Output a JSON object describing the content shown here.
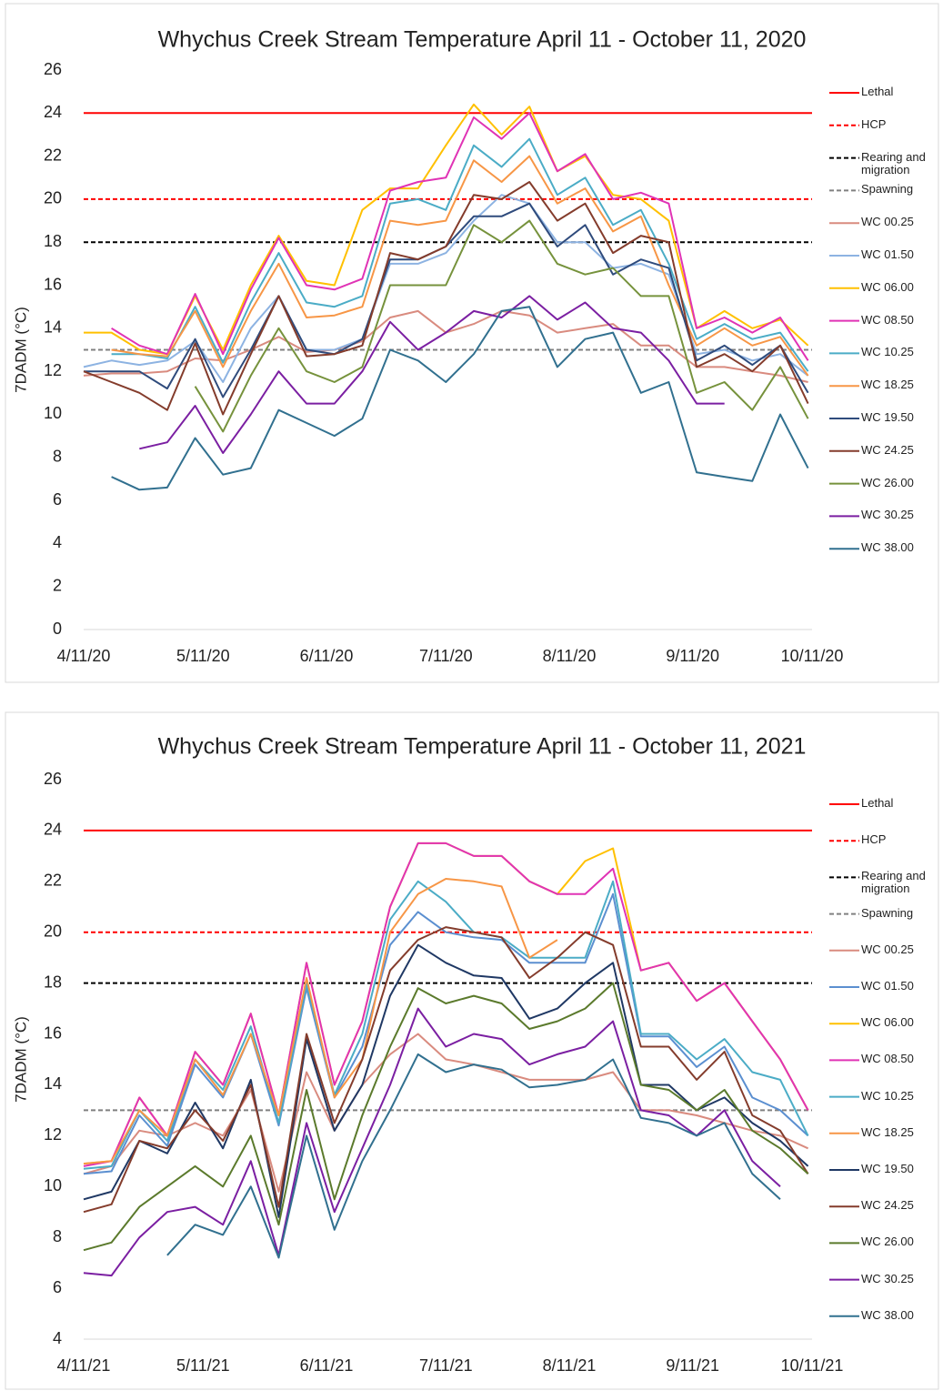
{
  "chart_data": [
    {
      "type": "line",
      "title": "Whychus Creek Stream Temperature April 11 - October 11, 2020",
      "y_label": "7DADM (°C)",
      "x": [
        "4/11/20",
        "4/18/20",
        "4/25/20",
        "5/2/20",
        "5/9/20",
        "5/16/20",
        "5/23/20",
        "5/30/20",
        "6/6/20",
        "6/13/20",
        "6/20/20",
        "6/27/20",
        "7/4/20",
        "7/11/20",
        "7/18/20",
        "7/25/20",
        "8/1/20",
        "8/8/20",
        "8/15/20",
        "8/22/20",
        "8/29/20",
        "9/5/20",
        "9/12/20",
        "9/19/20",
        "9/26/20",
        "10/3/20",
        "10/10/20"
      ],
      "xlim": [
        "4/11/20",
        "10/11/20"
      ],
      "xticks": [
        "4/11/20",
        "5/11/20",
        "6/11/20",
        "7/11/20",
        "8/11/20",
        "9/11/20",
        "10/11/20"
      ],
      "ylim": [
        0,
        26
      ],
      "yticks": [
        0,
        2,
        4,
        6,
        8,
        10,
        12,
        14,
        16,
        18,
        20,
        22,
        24,
        26
      ],
      "reference_lines": [
        {
          "name": "Lethal",
          "value": 24,
          "color": "#ff0000",
          "dashed": false
        },
        {
          "name": "HCP",
          "value": 20,
          "color": "#ff0000",
          "dashed": true
        },
        {
          "name": "Rearing and migration",
          "value": 18,
          "color": "#000000",
          "dashed": true
        },
        {
          "name": "Spawning",
          "value": 13,
          "color": "#808080",
          "dashed": true
        }
      ],
      "series": [
        {
          "name": "WC 00.25",
          "color": "#d98b7f",
          "values": [
            11.8,
            11.9,
            11.9,
            12,
            12.6,
            12.5,
            13,
            13.6,
            12.9,
            13,
            13.4,
            14.5,
            14.8,
            13.8,
            14.2,
            14.8,
            14.6,
            13.8,
            14,
            14.2,
            13.2,
            13.2,
            12.2,
            12.2,
            12,
            11.8,
            11.5
          ]
        },
        {
          "name": "WC 01.50",
          "color": "#8db3e2",
          "values": [
            12.2,
            12.5,
            12.3,
            12.5,
            13.4,
            11.5,
            14,
            15.5,
            13,
            13,
            13.5,
            17,
            17,
            17.5,
            19,
            20.2,
            19.8,
            18,
            18,
            16.8,
            17,
            16.5,
            12.8,
            13,
            12.5,
            12.8,
            11.8
          ]
        },
        {
          "name": "WC 06.00",
          "color": "#ffc000",
          "values": [
            13.8,
            13.8,
            13,
            12.8,
            15.5,
            13,
            16,
            18.3,
            16.2,
            16,
            19.5,
            20.5,
            20.5,
            22.5,
            24.4,
            23,
            24.3,
            21.3,
            22,
            20.2,
            20,
            19,
            14,
            14.8,
            14,
            14.4,
            13.2
          ]
        },
        {
          "name": "WC 08.50",
          "color": "#e033b5",
          "values": [
            null,
            14,
            13.2,
            12.8,
            15.6,
            12.8,
            15.8,
            18.2,
            16,
            15.8,
            16.3,
            20.4,
            20.8,
            21,
            23.8,
            22.8,
            24,
            21.3,
            22.1,
            20,
            20.3,
            19.8,
            14,
            14.5,
            13.8,
            14.5,
            12.5
          ]
        },
        {
          "name": "WC 10.25",
          "color": "#4bacc6",
          "values": [
            null,
            12.8,
            12.8,
            12.6,
            15,
            12.4,
            15.2,
            17.5,
            15.2,
            15,
            15.5,
            19.8,
            20,
            19.5,
            22.5,
            21.5,
            22.8,
            20.2,
            21,
            18.8,
            19.5,
            17,
            13.5,
            14.2,
            13.5,
            13.8,
            12
          ]
        },
        {
          "name": "WC 18.25",
          "color": "#f79646",
          "values": [
            null,
            13,
            12.8,
            12.7,
            14.8,
            12.2,
            14.8,
            17,
            14.5,
            14.6,
            15,
            19,
            18.8,
            19,
            21.8,
            20.8,
            22,
            19.8,
            20.5,
            18.5,
            19.2,
            16,
            13.2,
            14,
            13.2,
            13.6,
            11.8
          ]
        },
        {
          "name": "WC 19.50",
          "color": "#2f4b7c",
          "values": [
            12,
            12,
            12,
            11.2,
            13.5,
            10.8,
            13,
            15.5,
            13,
            12.8,
            13.5,
            17.2,
            17.2,
            17.8,
            19.2,
            19.2,
            19.8,
            17.8,
            18.8,
            16.5,
            17.2,
            16.8,
            12.5,
            13.2,
            12.3,
            13.2,
            11
          ]
        },
        {
          "name": "WC 24.25",
          "color": "#843c2c",
          "values": [
            12,
            11.5,
            11,
            10.2,
            13.3,
            10,
            12.8,
            15.5,
            12.7,
            12.8,
            13.2,
            17.5,
            17.2,
            17.8,
            20.2,
            20,
            20.8,
            19,
            19.8,
            17.5,
            18.3,
            18,
            12.2,
            12.8,
            12,
            13.2,
            10.5
          ]
        },
        {
          "name": "WC 26.00",
          "color": "#76923c",
          "values": [
            null,
            null,
            null,
            null,
            11.3,
            9.2,
            11.8,
            14,
            12,
            11.5,
            12.2,
            16,
            16,
            16,
            18.8,
            18,
            19,
            17,
            16.5,
            16.8,
            15.5,
            15.5,
            11,
            11.5,
            10.2,
            12.2,
            9.8
          ]
        },
        {
          "name": "WC 30.25",
          "color": "#7b1fa2",
          "values": [
            null,
            null,
            8.4,
            8.7,
            10.4,
            8.2,
            10,
            12,
            10.5,
            10.5,
            12,
            14.3,
            13,
            13.8,
            14.8,
            14.5,
            15.5,
            14.4,
            15.2,
            14,
            13.8,
            12.5,
            10.5,
            10.5,
            null,
            null,
            null
          ]
        },
        {
          "name": "WC 38.00",
          "color": "#31708f",
          "values": [
            null,
            7.1,
            6.5,
            6.6,
            8.9,
            7.2,
            7.5,
            10.2,
            9.6,
            9,
            9.8,
            13,
            12.5,
            11.5,
            12.8,
            14.8,
            15,
            12.2,
            13.5,
            13.8,
            11,
            11.5,
            7.3,
            7.1,
            6.9,
            10,
            7.5
          ]
        }
      ]
    },
    {
      "type": "line",
      "title": "Whychus Creek Stream Temperature April 11 - October 11, 2021",
      "y_label": "7DADM (°C)",
      "x": [
        "4/11/21",
        "4/18/21",
        "4/25/21",
        "5/2/21",
        "5/9/21",
        "5/16/21",
        "5/23/21",
        "5/30/21",
        "6/6/21",
        "6/13/21",
        "6/20/21",
        "6/27/21",
        "7/4/21",
        "7/11/21",
        "7/18/21",
        "7/25/21",
        "8/1/21",
        "8/8/21",
        "8/15/21",
        "8/22/21",
        "8/29/21",
        "9/5/21",
        "9/12/21",
        "9/19/21",
        "9/26/21",
        "10/3/21",
        "10/10/21"
      ],
      "xlim": [
        "4/11/21",
        "10/11/21"
      ],
      "xticks": [
        "4/11/21",
        "5/11/21",
        "6/11/21",
        "7/11/21",
        "8/11/21",
        "9/11/21",
        "10/11/21"
      ],
      "ylim": [
        4,
        26
      ],
      "yticks": [
        4,
        6,
        8,
        10,
        12,
        14,
        16,
        18,
        20,
        22,
        24,
        26
      ],
      "reference_lines": [
        {
          "name": "Lethal",
          "value": 24,
          "color": "#ff0000",
          "dashed": false
        },
        {
          "name": "HCP",
          "value": 20,
          "color": "#ff0000",
          "dashed": true
        },
        {
          "name": "Rearing and migration",
          "value": 18,
          "color": "#000000",
          "dashed": true
        },
        {
          "name": "Spawning",
          "value": 13,
          "color": "#808080",
          "dashed": true
        }
      ],
      "series": [
        {
          "name": "WC 00.25",
          "color": "#d98b7f",
          "values": [
            10.5,
            10.8,
            12.2,
            12,
            12.5,
            12,
            13.8,
            9.8,
            14.5,
            12.2,
            14,
            15.2,
            16,
            15,
            14.8,
            14.5,
            14.2,
            14.2,
            14.2,
            14.5,
            13,
            13,
            12.8,
            12.5,
            12.2,
            12,
            11.5
          ]
        },
        {
          "name": "WC 01.50",
          "color": "#5b8fd0",
          "values": [
            10.5,
            10.6,
            12.8,
            11.6,
            14.8,
            13.5,
            16,
            12.4,
            17.8,
            13.5,
            15.5,
            19.5,
            20.8,
            20,
            19.8,
            19.7,
            18.8,
            18.8,
            18.8,
            21.5,
            15.9,
            15.9,
            14.7,
            15.5,
            13.5,
            13,
            12
          ]
        },
        {
          "name": "WC 06.00",
          "color": "#ffc000",
          "values": [
            10.9,
            11,
            13.5,
            12,
            15.3,
            14,
            16.8,
            12.8,
            18.8,
            14,
            16.5,
            21,
            23.5,
            23.5,
            23,
            23,
            22,
            21.5,
            22.8,
            23.3,
            18.5,
            18.8,
            17.3,
            18,
            16.5,
            15,
            13
          ]
        },
        {
          "name": "WC 08.50",
          "color": "#e033b5",
          "values": [
            10.8,
            11,
            13.5,
            12,
            15.3,
            14,
            16.8,
            12.8,
            18.8,
            14,
            16.5,
            21,
            23.5,
            23.5,
            23,
            23,
            22,
            21.5,
            21.5,
            22.5,
            18.5,
            18.8,
            17.3,
            18,
            16.5,
            15,
            13
          ]
        },
        {
          "name": "WC 10.25",
          "color": "#4bacc6",
          "values": [
            10.7,
            10.8,
            13,
            11.8,
            15,
            13.8,
            16.3,
            12.5,
            18,
            13.6,
            16,
            20.5,
            22,
            21.2,
            20,
            19.8,
            19,
            19,
            19,
            22,
            16,
            16,
            15,
            15.8,
            14.5,
            14.2,
            12
          ]
        },
        {
          "name": "WC 18.25",
          "color": "#f79646",
          "values": [
            10.9,
            11,
            13,
            12,
            15,
            13.6,
            16,
            12.8,
            18.2,
            13.5,
            15,
            20,
            21.5,
            22.1,
            22,
            21.8,
            19,
            19.7,
            null,
            null,
            null,
            null,
            null,
            null,
            null,
            null,
            null
          ]
        },
        {
          "name": "WC 19.50",
          "color": "#1f3864",
          "values": [
            9.5,
            9.8,
            11.8,
            11.3,
            13.3,
            11.5,
            14.2,
            8.8,
            15.8,
            12.2,
            14,
            17.5,
            19.5,
            18.8,
            18.3,
            18.2,
            16.6,
            17,
            18,
            18.8,
            14,
            14,
            13,
            13.5,
            12.5,
            11.8,
            10.8
          ]
        },
        {
          "name": "WC 24.25",
          "color": "#843c2c",
          "values": [
            9,
            9.3,
            11.8,
            11.5,
            13,
            11.8,
            14,
            9.2,
            16,
            12.5,
            15,
            18.5,
            19.7,
            20.2,
            20,
            19.8,
            18.2,
            19,
            20,
            19.5,
            15.5,
            15.5,
            14.2,
            15.3,
            12.8,
            12.2,
            10.5
          ]
        },
        {
          "name": "WC 26.00",
          "color": "#5b7a2c",
          "values": [
            7.5,
            7.8,
            9.2,
            10,
            10.8,
            10,
            12,
            8.5,
            13.8,
            9.5,
            12.8,
            15.5,
            17.8,
            17.2,
            17.5,
            17.2,
            16.2,
            16.5,
            17,
            18,
            14,
            13.8,
            13,
            13.8,
            12.2,
            11.5,
            10.5
          ]
        },
        {
          "name": "WC 30.25",
          "color": "#7b1fa2",
          "values": [
            6.6,
            6.5,
            8,
            9,
            9.2,
            8.5,
            11,
            7.3,
            12.5,
            9,
            11.5,
            14,
            17,
            15.5,
            16,
            15.8,
            14.8,
            15.2,
            15.5,
            16.5,
            13,
            12.8,
            12,
            13,
            11,
            10,
            null
          ]
        },
        {
          "name": "WC 38.00",
          "color": "#31708f",
          "values": [
            null,
            null,
            null,
            7.3,
            8.5,
            8.1,
            10,
            7.2,
            12,
            8.3,
            11,
            13,
            15.2,
            14.5,
            14.8,
            14.6,
            13.9,
            14,
            14.2,
            15,
            12.7,
            12.5,
            12,
            12.5,
            10.5,
            9.5,
            null
          ]
        }
      ]
    }
  ]
}
